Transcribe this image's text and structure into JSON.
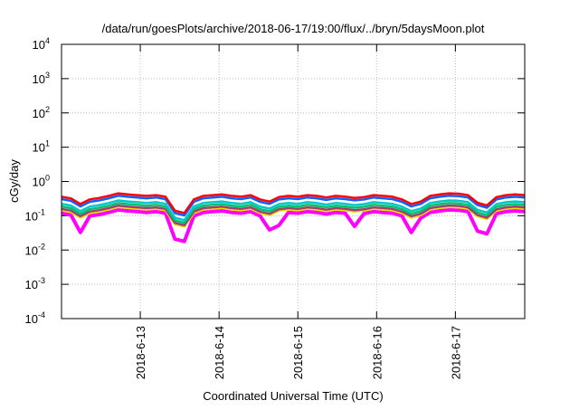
{
  "chart_data": {
    "type": "line",
    "title": "/data/run/goesPlots/archive/2018-06-17/19:00/flux/../bryn/5daysMoon.plot",
    "xlabel": "Coordinated Universal Time (UTC)",
    "ylabel": "cGy/day",
    "yscale": "log",
    "ylim": [
      0.0001,
      10000
    ],
    "xlim_days_from_2018-6-12": [
      0,
      5.88
    ],
    "y_ticks": [
      {
        "base": "10",
        "exp": "4",
        "v": 4
      },
      {
        "base": "10",
        "exp": "3",
        "v": 3
      },
      {
        "base": "10",
        "exp": "2",
        "v": 2
      },
      {
        "base": "10",
        "exp": "1",
        "v": 1
      },
      {
        "base": "10",
        "exp": "0",
        "v": 0
      },
      {
        "base": "10",
        "exp": "-1",
        "v": -1
      },
      {
        "base": "10",
        "exp": "-2",
        "v": -2
      },
      {
        "base": "10",
        "exp": "-3",
        "v": -3
      },
      {
        "base": "10",
        "exp": "-4",
        "v": -4
      }
    ],
    "x_ticks": [
      {
        "label": "2018-6-13",
        "day": 1
      },
      {
        "label": "2018-6-14",
        "day": 2
      },
      {
        "label": "2018-6-15",
        "day": 3
      },
      {
        "label": "2018-6-16",
        "day": 4
      },
      {
        "label": "2018-6-17",
        "day": 5
      }
    ],
    "grid": true,
    "base_profile": [
      0.36,
      0.32,
      0.22,
      0.3,
      0.33,
      0.38,
      0.45,
      0.42,
      0.4,
      0.38,
      0.4,
      0.36,
      0.14,
      0.12,
      0.3,
      0.38,
      0.4,
      0.42,
      0.38,
      0.36,
      0.4,
      0.3,
      0.26,
      0.35,
      0.38,
      0.36,
      0.4,
      0.38,
      0.34,
      0.38,
      0.36,
      0.33,
      0.35,
      0.4,
      0.38,
      0.36,
      0.3,
      0.22,
      0.26,
      0.38,
      0.42,
      0.45,
      0.44,
      0.4,
      0.24,
      0.2,
      0.35,
      0.4,
      0.42,
      0.4
    ],
    "series": [
      {
        "color": "#ff0000",
        "scale": 1.0
      },
      {
        "color": "#1060ff",
        "scale": 0.85
      },
      {
        "color": "#00c8c8",
        "scale": 0.62
      },
      {
        "color": "#00c070",
        "scale": 0.52
      },
      {
        "color": "#a04070",
        "scale": 0.44
      },
      {
        "color": "#e8e000",
        "scale": 0.4
      },
      {
        "color": "#ff00ff",
        "scale": 0.33,
        "dips": [
          2,
          12,
          13,
          22,
          23,
          31,
          37,
          44,
          45
        ]
      }
    ]
  }
}
